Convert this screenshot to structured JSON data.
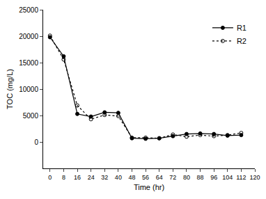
{
  "chart_data": {
    "type": "line",
    "x_label": "Time (hr)",
    "y_label": "TOC (mg/L)",
    "x": [
      0,
      8,
      16,
      24,
      32,
      40,
      48,
      56,
      64,
      72,
      80,
      88,
      96,
      104,
      112
    ],
    "series": [
      {
        "name": "R1",
        "color": "#000000",
        "marker": "circle",
        "line_style": "solid",
        "values": [
          19800,
          16200,
          5300,
          4800,
          5600,
          5500,
          700,
          600,
          700,
          1100,
          1500,
          1600,
          1500,
          1200,
          1300
        ]
      },
      {
        "name": "R2",
        "color": "#000000",
        "marker": "circle-open",
        "line_style": "dot",
        "values": [
          20100,
          15600,
          6900,
          4300,
          5100,
          4900,
          800,
          800,
          700,
          1400,
          1000,
          1300,
          1100,
          1300,
          1700
        ]
      }
    ],
    "xlim": [
      -4,
      120
    ],
    "xticks": [
      0,
      8,
      16,
      24,
      32,
      40,
      48,
      56,
      64,
      72,
      80,
      88,
      96,
      104,
      112,
      120
    ],
    "ylim": [
      -5000,
      25000
    ],
    "yticks": [
      0,
      5000,
      10000,
      15000,
      20000,
      25000
    ],
    "grid": false,
    "legend": "upper right"
  }
}
